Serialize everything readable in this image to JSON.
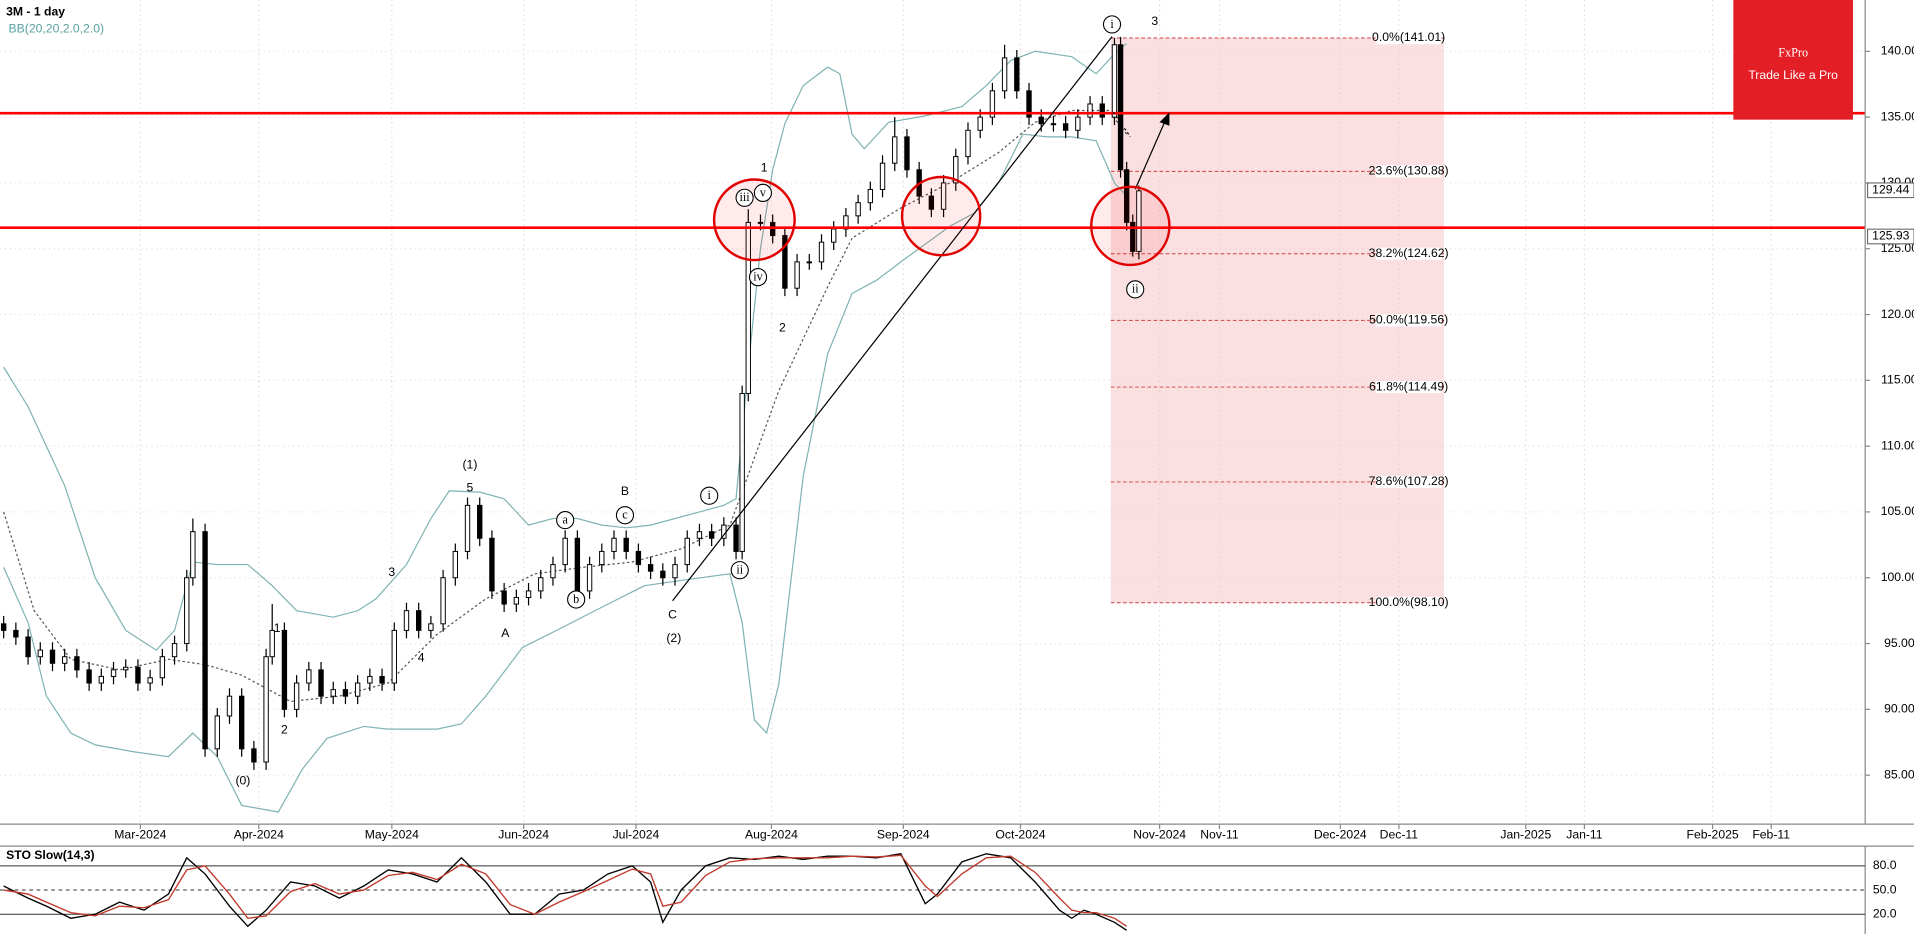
{
  "chart_data": {
    "type": "candlestick",
    "title": "3M - 1 day",
    "indicator_label": "BB(20,20,2.0,2.0)",
    "xlim": [
      -0.6,
      305
    ],
    "xticks": [
      {
        "value": 22.4,
        "label": "Mar-2024"
      },
      {
        "value": 41.8,
        "label": "Apr-2024"
      },
      {
        "value": 63.6,
        "label": "May-2024"
      },
      {
        "value": 85.2,
        "label": "Jun-2024"
      },
      {
        "value": 103.6,
        "label": "Jul-2024"
      },
      {
        "value": 125.8,
        "label": "Aug-2024"
      },
      {
        "value": 147.4,
        "label": "Sep-2024"
      },
      {
        "value": 166.6,
        "label": "Oct-2024"
      },
      {
        "value": 189.4,
        "label": "Nov-2024"
      },
      {
        "value": 199.2,
        "label": "Nov-11"
      },
      {
        "value": 219,
        "label": "Dec-2024"
      },
      {
        "value": 228.6,
        "label": "Dec-11"
      },
      {
        "value": 249.4,
        "label": "Jan-2025"
      },
      {
        "value": 259,
        "label": "Jan-11"
      },
      {
        "value": 280,
        "label": "Feb-2025"
      },
      {
        "value": 289.6,
        "label": "Feb-11"
      }
    ],
    "ylim": [
      81.28,
      143.9
    ],
    "yticks": [
      {
        "value": 85,
        "label": "85.00"
      },
      {
        "value": 90,
        "label": "90.00"
      },
      {
        "value": 95,
        "label": "95.00"
      },
      {
        "value": 100,
        "label": "100.00"
      },
      {
        "value": 105,
        "label": "105.00"
      },
      {
        "value": 110,
        "label": "110.00"
      },
      {
        "value": 115,
        "label": "115.00"
      },
      {
        "value": 120,
        "label": "120.00"
      },
      {
        "value": 125,
        "label": "125.00"
      },
      {
        "value": 130,
        "label": "130.00"
      },
      {
        "value": 135,
        "label": "135.00"
      },
      {
        "value": 140,
        "label": "140.00"
      }
    ],
    "grid": true,
    "candles": {
      "x": [
        0,
        2,
        4,
        6,
        8,
        10,
        12,
        14,
        16,
        18,
        20,
        22,
        24,
        26,
        28,
        30,
        31,
        33,
        35,
        37,
        39,
        41,
        43,
        44,
        46,
        48,
        50,
        52,
        54,
        56,
        58,
        60,
        62,
        64,
        66,
        68,
        70,
        72,
        74,
        76,
        78,
        80,
        82,
        84,
        86,
        88,
        90,
        92,
        94,
        96,
        98,
        100,
        102,
        104,
        106,
        108,
        110,
        112,
        114,
        116,
        118,
        120,
        121,
        122,
        124,
        126,
        128,
        130,
        132,
        134,
        136,
        138,
        140,
        142,
        144,
        146,
        148,
        150,
        152,
        154,
        156,
        158,
        160,
        162,
        164,
        166,
        168,
        170,
        172,
        174,
        176,
        178,
        180,
        182,
        183,
        184,
        185,
        186
      ],
      "open": [
        96.5,
        96,
        95.5,
        94,
        94.5,
        93.5,
        94,
        93,
        92,
        92.5,
        93,
        93.2,
        92,
        92.4,
        94,
        95,
        100,
        103.5,
        87,
        89.5,
        91,
        87,
        86,
        94,
        96,
        90,
        92,
        93,
        91,
        91.5,
        91,
        92,
        92.5,
        92,
        96,
        97.5,
        96,
        96.5,
        100,
        102,
        105.5,
        103,
        99,
        98,
        98.5,
        99,
        100,
        101,
        103,
        99,
        101,
        102,
        103,
        102,
        101,
        100.5,
        100,
        101,
        103,
        103.5,
        103,
        104,
        102,
        114,
        127,
        127,
        126,
        122,
        124,
        124,
        125.5,
        126.5,
        127.5,
        128.5,
        129.5,
        131.5,
        133.5,
        131,
        129,
        128,
        130,
        132,
        134,
        135,
        137,
        139.5,
        137,
        135,
        134.5,
        134.5,
        134,
        135,
        136,
        135,
        140.5,
        131,
        127,
        124.8
      ],
      "high": [
        97.1,
        96.6,
        96.1,
        95.1,
        95.1,
        94.6,
        94.6,
        93.6,
        93.1,
        93.6,
        93.8,
        93.8,
        93,
        94.6,
        95.6,
        100.6,
        104.5,
        104.1,
        90.1,
        91.6,
        91.6,
        87.6,
        94.6,
        98,
        96.6,
        92.6,
        93.6,
        93.6,
        92.1,
        92.1,
        92.6,
        93.1,
        93.1,
        96.6,
        98.1,
        98.1,
        97.1,
        100.6,
        102.6,
        106.1,
        106.1,
        103.6,
        99.6,
        99.1,
        99.6,
        100.6,
        101.6,
        103.6,
        103.6,
        101.6,
        102.6,
        103.6,
        103.6,
        102.6,
        101.6,
        101.1,
        101.6,
        103.6,
        104.1,
        104.1,
        104.6,
        104.6,
        114.6,
        128,
        127.6,
        127.6,
        126.6,
        124.6,
        124.6,
        126.1,
        127.1,
        128.1,
        129.1,
        130.1,
        132.1,
        135,
        134.1,
        131.6,
        129.6,
        130.6,
        132.6,
        134.6,
        135.6,
        137.6,
        140.5,
        140.1,
        137.6,
        135.6,
        135.1,
        135.1,
        135.6,
        136.6,
        136.6,
        141,
        141.1,
        131.6,
        127.6,
        129.8
      ],
      "low": [
        95.4,
        94.9,
        93.4,
        93.4,
        92.9,
        92.9,
        92.4,
        91.4,
        91.4,
        91.9,
        92.4,
        91.4,
        91.4,
        91.8,
        93.4,
        94.4,
        99.4,
        86.4,
        86.4,
        88.9,
        86.4,
        85.4,
        85.4,
        93.4,
        89.4,
        89.4,
        91.4,
        90.4,
        90.4,
        90.4,
        90.4,
        91.4,
        91.4,
        91.4,
        95.4,
        95.4,
        95.4,
        95.9,
        99.4,
        101.4,
        102.4,
        98.4,
        97.4,
        97.4,
        97.9,
        98.4,
        99.4,
        100.4,
        98.4,
        98.4,
        100.4,
        101.4,
        101.4,
        100.4,
        99.9,
        99.4,
        99.4,
        100.4,
        102.4,
        102.4,
        102.4,
        101.4,
        101.4,
        113.4,
        126.4,
        125.4,
        121.4,
        121.4,
        123.4,
        123.4,
        124.9,
        125.9,
        126.9,
        127.9,
        128.9,
        130.9,
        130.4,
        128.4,
        127.4,
        127.4,
        129.4,
        131.4,
        133.4,
        134.4,
        136.4,
        136.4,
        134.4,
        133.9,
        133.9,
        133.4,
        133.4,
        134.4,
        134.4,
        134.4,
        130.4,
        126.4,
        124.4,
        124.2
      ],
      "close": [
        96,
        95.5,
        94,
        94.5,
        93.5,
        94,
        93,
        92,
        92.5,
        93,
        93.2,
        92,
        92.4,
        94,
        95,
        100,
        103.5,
        87,
        89.5,
        91,
        87,
        86,
        94,
        96,
        90,
        92,
        93,
        91,
        91.5,
        91,
        92,
        92.5,
        92,
        96,
        97.5,
        96,
        96.5,
        100,
        102,
        105.5,
        103,
        99,
        98,
        98.5,
        99,
        100,
        101,
        103,
        99,
        101,
        102,
        103,
        102,
        101,
        100.5,
        100,
        101,
        103,
        103.5,
        103,
        104,
        102,
        114,
        127,
        127,
        126,
        122,
        124,
        124,
        125.5,
        126.5,
        127.5,
        128.5,
        129.5,
        131.5,
        133.5,
        131,
        129,
        128,
        130,
        132,
        134,
        135,
        137,
        139.5,
        137,
        135,
        134.5,
        134.5,
        134,
        135,
        136,
        135,
        140.5,
        131,
        127,
        124.8,
        129.4
      ],
      "up_color": "#ffffff",
      "down_color": "#000000"
    },
    "bands": [
      {
        "color": "#7fb3b3",
        "dashed": false,
        "x": [
          0,
          4,
          10,
          15,
          20,
          25,
          28,
          31,
          35,
          40,
          44,
          48,
          54,
          58,
          61,
          66,
          70,
          73,
          78,
          82,
          86,
          90,
          94,
          98,
          102,
          106,
          110,
          114,
          118,
          120,
          122,
          124,
          126,
          128,
          131,
          135,
          137,
          139,
          141,
          145,
          151,
          157,
          161,
          165,
          169,
          175,
          179,
          182,
          184
        ],
        "values": [
          116,
          113,
          107,
          100,
          96,
          94.5,
          96,
          101.2,
          101,
          101,
          99.4,
          97.5,
          97,
          97.5,
          98.4,
          101,
          104.5,
          106.6,
          106.5,
          106,
          104,
          104.5,
          104.5,
          104,
          103.8,
          104,
          104.5,
          105,
          105.5,
          106,
          116,
          125,
          131,
          134.5,
          137.4,
          138.8,
          138.3,
          133.7,
          132.6,
          134.6,
          135.1,
          135.8,
          137.4,
          139.3,
          140,
          139.6,
          138.3,
          139.8,
          140.6
        ]
      },
      {
        "color": "#7fb3b3",
        "dashed": false,
        "x": [
          0,
          4,
          7,
          11,
          15,
          21,
          27,
          31,
          35,
          39,
          45,
          49,
          53,
          59,
          63,
          71,
          75,
          79,
          85,
          91,
          99,
          105,
          111,
          119,
          121,
          123,
          125,
          127,
          131,
          135,
          139,
          143,
          147,
          155,
          159,
          163,
          167,
          171,
          175,
          179,
          182,
          184
        ],
        "values": [
          100.8,
          96.6,
          91,
          88.2,
          87.3,
          86.8,
          86.4,
          88.2,
          86.4,
          82.7,
          82.2,
          85.5,
          87.8,
          88.7,
          88.5,
          88.5,
          88.9,
          91,
          94.7,
          96.1,
          98,
          99.4,
          99.8,
          100.3,
          96.6,
          89.2,
          88.2,
          91.9,
          107.7,
          117,
          121.6,
          122.6,
          124,
          126.7,
          127.7,
          130,
          133.7,
          133.5,
          133.5,
          133.2,
          130,
          129
        ]
      },
      {
        "color": "#555555",
        "dashed": true,
        "x": [
          0,
          5,
          11,
          19,
          27,
          33,
          39,
          47,
          55,
          63,
          71,
          79,
          87,
          95,
          103,
          111,
          119,
          127,
          135,
          139,
          147,
          155,
          163,
          169,
          175,
          181,
          184
        ],
        "values": [
          105,
          97.5,
          93.8,
          93,
          93.8,
          93.4,
          92.6,
          90.6,
          91,
          92,
          95.7,
          98.4,
          100.3,
          100.8,
          101.2,
          102.2,
          104,
          114.2,
          122.1,
          125.8,
          128.1,
          130,
          132.3,
          134.6,
          135.5,
          135.5,
          133.7
        ]
      }
    ],
    "levels": [
      135.3,
      126.6
    ],
    "level_color": "#ff0000",
    "price_labels": [
      129.44,
      125.93
    ],
    "fib": {
      "x": [
        181.4,
        236
      ],
      "color": "#f5c6c6",
      "levels": [
        {
          "value": 141.01,
          "label": "0.0%(141.01)"
        },
        {
          "value": 130.88,
          "label": "23.6%(130.88)"
        },
        {
          "value": 124.62,
          "label": "38.2%(124.62)"
        },
        {
          "value": 119.56,
          "label": "50.0%(119.56)"
        },
        {
          "value": 114.49,
          "label": "61.8%(114.49)"
        },
        {
          "value": 107.28,
          "label": "78.6%(107.28)"
        },
        {
          "value": 98.1,
          "label": "100.0%(98.10)"
        }
      ]
    },
    "wave_labels": [
      "(0)",
      "1",
      "2",
      "3",
      "4",
      "(1)",
      "5",
      "A",
      "B",
      "C",
      "(2)",
      "1",
      "2",
      "3"
    ],
    "circled_labels": [
      "a",
      "b",
      "c",
      "i",
      "ii",
      "iii",
      "v",
      "iv",
      "i",
      "ii"
    ],
    "logo": {
      "name": "FxPro",
      "tagline": "Trade Like a Pro"
    },
    "oscillator": {
      "title": "STO Slow(14,3)",
      "ylim": [
        0,
        100
      ],
      "yticks": [
        {
          "value": 80,
          "label": "80.0"
        },
        {
          "value": 50,
          "label": "50.0"
        },
        {
          "value": 20,
          "label": "20.0"
        }
      ],
      "series": [
        {
          "color": "#000000",
          "x": [
            0,
            4,
            7,
            11,
            15,
            19,
            23,
            27,
            30,
            33,
            37,
            40,
            43,
            47,
            51,
            55,
            59,
            63,
            67,
            71,
            75,
            79,
            83,
            87,
            91,
            95,
            99,
            103,
            106,
            108,
            111,
            115,
            119,
            123,
            127,
            131,
            135,
            139,
            143,
            147,
            151,
            153,
            157,
            161,
            165,
            169,
            173,
            175,
            177,
            179,
            182,
            184
          ],
          "values": [
            55,
            40,
            30,
            15,
            20,
            35,
            25,
            45,
            90,
            70,
            30,
            5,
            25,
            60,
            55,
            40,
            55,
            75,
            70,
            60,
            90,
            60,
            20,
            20,
            45,
            50,
            70,
            80,
            60,
            10,
            50,
            80,
            90,
            88,
            92,
            88,
            92,
            92,
            90,
            95,
            33,
            45,
            85,
            95,
            90,
            60,
            25,
            15,
            25,
            20,
            10,
            0
          ]
        },
        {
          "color": "#c0392b",
          "x": [
            0,
            4,
            7,
            11,
            15,
            19,
            23,
            27,
            30,
            33,
            37,
            40,
            43,
            47,
            51,
            55,
            59,
            63,
            67,
            71,
            75,
            79,
            83,
            87,
            91,
            95,
            99,
            103,
            106,
            108,
            111,
            115,
            119,
            123,
            127,
            131,
            135,
            139,
            143,
            147,
            151,
            153,
            157,
            161,
            165,
            169,
            173,
            175,
            177,
            179,
            182,
            184
          ],
          "values": [
            50,
            45,
            35,
            22,
            18,
            30,
            28,
            38,
            75,
            80,
            45,
            15,
            18,
            48,
            58,
            45,
            50,
            68,
            72,
            63,
            82,
            70,
            32,
            20,
            35,
            48,
            62,
            76,
            70,
            30,
            35,
            68,
            85,
            89,
            90,
            90,
            90,
            92,
            91,
            93,
            55,
            42,
            70,
            90,
            92,
            72,
            40,
            25,
            22,
            22,
            15,
            5
          ]
        }
      ]
    }
  }
}
